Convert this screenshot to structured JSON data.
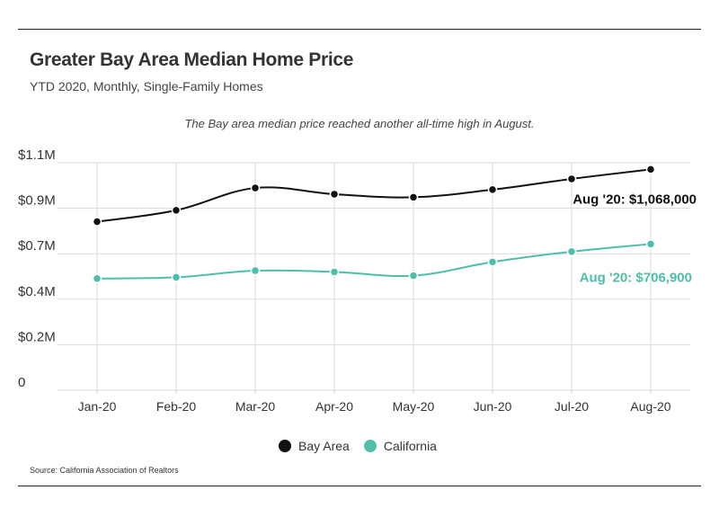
{
  "header": {
    "title": "Greater Bay Area Median Home Price",
    "subtitle": "YTD 2020, Monthly, Single-Family Homes",
    "annotation": "The Bay area median price reached another all-time high in August."
  },
  "footer": {
    "source": "Source:  California Association of Realtors"
  },
  "colors": {
    "bay_area": "#111111",
    "california": "#4dbfa8",
    "grid": "#d9d9d9"
  },
  "chart_data": {
    "type": "line",
    "categories": [
      "Jan-20",
      "Feb-20",
      "Mar-20",
      "Apr-20",
      "May-20",
      "Jun-20",
      "Jul-20",
      "Aug-20"
    ],
    "y_tick_labels": [
      "0",
      "$0.2M",
      "$0.4M",
      "$0.7M",
      "$0.9M",
      "$1.1M"
    ],
    "ylim": [
      0,
      1.1
    ],
    "grid": true,
    "legend_position": "bottom-center",
    "series": [
      {
        "name": "Bay Area",
        "color": "#111111",
        "values": [
          0.815,
          0.87,
          0.978,
          0.948,
          0.933,
          0.97,
          1.022,
          1.068
        ],
        "end_label": "Aug '20: $1,068,000"
      },
      {
        "name": "California",
        "color": "#4dbfa8",
        "values": [
          0.54,
          0.546,
          0.578,
          0.572,
          0.554,
          0.62,
          0.67,
          0.7069
        ],
        "end_label": "Aug '20: $706,900"
      }
    ]
  }
}
